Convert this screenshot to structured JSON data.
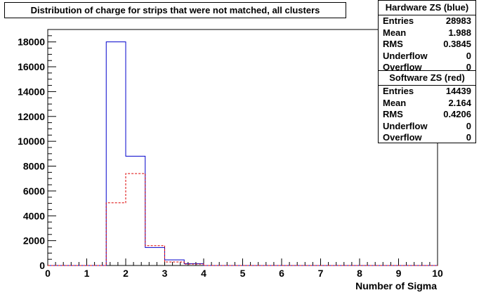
{
  "title": "Distribution of charge for strips that were not matched, all clusters",
  "stats_boxes": [
    {
      "header": "Hardware ZS (blue)",
      "rows": [
        {
          "label": "Entries",
          "value": "28983"
        },
        {
          "label": "Mean",
          "value": "1.988"
        },
        {
          "label": "RMS",
          "value": "0.3845"
        },
        {
          "label": "Underflow",
          "value": "0"
        },
        {
          "label": "Overflow",
          "value": "0"
        }
      ]
    },
    {
      "header": "Software ZS (red)",
      "rows": [
        {
          "label": "Entries",
          "value": "14439"
        },
        {
          "label": "Mean",
          "value": "2.164"
        },
        {
          "label": "RMS",
          "value": "0.4206"
        },
        {
          "label": "Underflow",
          "value": "0"
        },
        {
          "label": "Overflow",
          "value": "0"
        }
      ]
    }
  ],
  "colors": {
    "blue_series": "#0000cc",
    "red_series": "#dd0000",
    "axis": "#000000"
  },
  "chart_data": {
    "type": "histogram-step",
    "xlabel": "Number of Sigma",
    "ylabel": "",
    "xlim": [
      0,
      10
    ],
    "ylim": [
      0,
      19000
    ],
    "bin_edges": [
      0,
      0.5,
      1,
      1.5,
      2,
      2.5,
      3,
      3.5,
      4,
      4.5,
      5,
      5.5,
      6,
      6.5,
      7,
      7.5,
      8,
      8.5,
      9,
      9.5,
      10
    ],
    "x_ticks": [
      "0",
      "1",
      "2",
      "3",
      "4",
      "5",
      "6",
      "7",
      "8",
      "9",
      "10"
    ],
    "y_ticks": [
      "0",
      "2000",
      "4000",
      "6000",
      "8000",
      "10000",
      "12000",
      "14000",
      "16000",
      "18000"
    ],
    "series": [
      {
        "color": "blue",
        "style": "solid",
        "values": [
          0,
          0,
          0,
          18000,
          8800,
          1450,
          450,
          150,
          0,
          0,
          0,
          0,
          0,
          0,
          0,
          0,
          0,
          0,
          0,
          0
        ]
      },
      {
        "color": "red",
        "style": "dashed",
        "values": [
          0,
          0,
          0,
          5050,
          7400,
          1600,
          280,
          110,
          0,
          0,
          0,
          0,
          0,
          0,
          0,
          0,
          0,
          0,
          0,
          0
        ]
      }
    ]
  }
}
